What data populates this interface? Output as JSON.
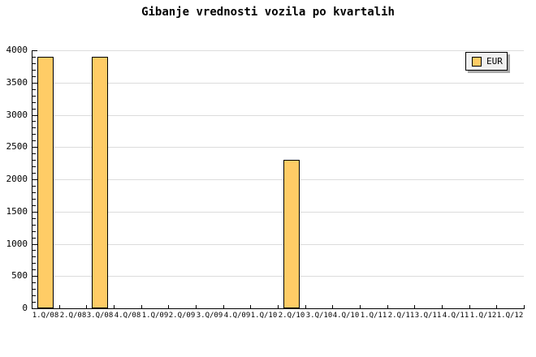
{
  "title": "Gibanje vrednosti vozila po kvartalih",
  "legend": {
    "position": "top-right",
    "items": [
      {
        "label": "EUR",
        "swatch_color": "#ffcc66",
        "swatch_icon": "square-swatch-icon"
      }
    ]
  },
  "colors": {
    "background": "#ffffff",
    "bar_fill": "#ffcc66",
    "bar_border": "#000000",
    "gridline": "#dcdcdc",
    "axis": "#000000",
    "legend_bg": "#f0f0f0",
    "legend_shadow": "#a9a9a9",
    "text": "#000000"
  },
  "chart_data": {
    "type": "bar",
    "title": "Gibanje vrednosti vozila po kvartalih",
    "categories": [
      "1.Q/08",
      "2.Q/08",
      "3.Q/08",
      "4.Q/08",
      "1.Q/09",
      "2.Q/09",
      "3.Q/09",
      "4.Q/09",
      "1.Q/10",
      "2.Q/10",
      "3.Q/10",
      "4.Q/10",
      "1.Q/11",
      "2.Q/11",
      "3.Q/11",
      "4.Q/11",
      "1.Q/12",
      "1.Q/12"
    ],
    "series": [
      {
        "name": "EUR",
        "values": [
          3900,
          null,
          3900,
          null,
          null,
          null,
          null,
          null,
          null,
          2300,
          null,
          null,
          null,
          null,
          null,
          null,
          null,
          null
        ]
      }
    ],
    "xlabel": "",
    "ylabel": "",
    "ylim": [
      0,
      4000
    ],
    "y_major_step": 500,
    "y_minor_step": 100,
    "y_tick_labels": [
      "0",
      "500",
      "1000",
      "1500",
      "2000",
      "2500",
      "3000",
      "3500",
      "4000"
    ],
    "grid": "horizontal-major",
    "legend_position": "top-right",
    "bar_color": "#ffcc66"
  }
}
